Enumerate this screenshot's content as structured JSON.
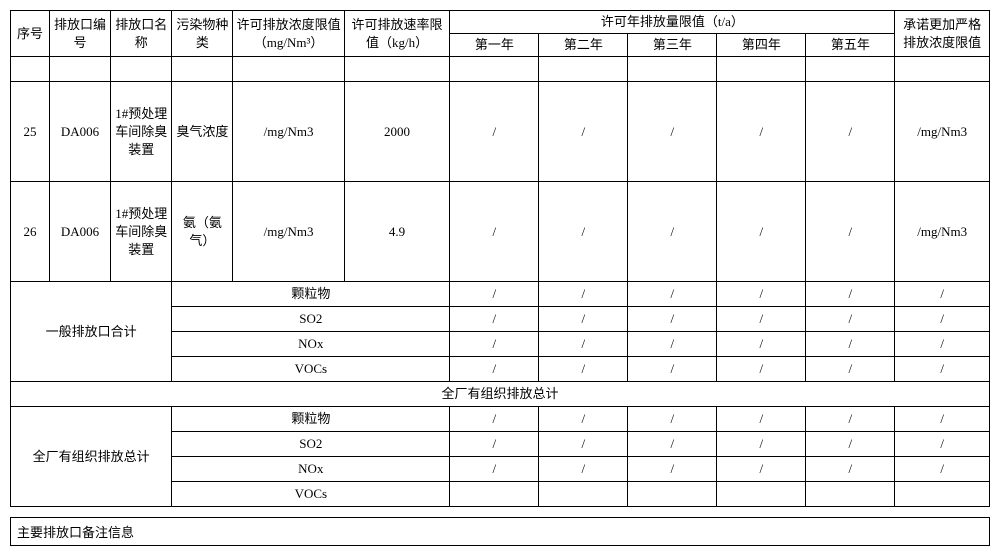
{
  "headers": {
    "seq": "序号",
    "code": "排放口编号",
    "name": "排放口名称",
    "pollutant": "污染物种类",
    "conc": "许可排放浓度限值（mg/Nm³）",
    "rate": "许可排放速率限值（kg/h）",
    "annual": "许可年排放量限值（t/a）",
    "y1": "第一年",
    "y2": "第二年",
    "y3": "第三年",
    "y4": "第四年",
    "y5": "第五年",
    "commit": "承诺更加严格排放浓度限值"
  },
  "rows": [
    {
      "seq": "25",
      "code": "DA006",
      "name": "1#预处理车间除臭装置",
      "pollutant": "臭气浓度",
      "conc": "/mg/Nm3",
      "rate": "2000",
      "y1": "/",
      "y2": "/",
      "y3": "/",
      "y4": "/",
      "y5": "/",
      "commit": "/mg/Nm3"
    },
    {
      "seq": "26",
      "code": "DA006",
      "name": "1#预处理车间除臭装置",
      "pollutant": "氨（氨气）",
      "conc": "/mg/Nm3",
      "rate": "4.9",
      "y1": "/",
      "y2": "/",
      "y3": "/",
      "y4": "/",
      "y5": "/",
      "commit": "/mg/Nm3"
    }
  ],
  "subtotal_general": {
    "label": "一般排放口合计",
    "lines": [
      {
        "p": "颗粒物",
        "y1": "/",
        "y2": "/",
        "y3": "/",
        "y4": "/",
        "y5": "/",
        "commit": "/"
      },
      {
        "p": "SO2",
        "y1": "/",
        "y2": "/",
        "y3": "/",
        "y4": "/",
        "y5": "/",
        "commit": "/"
      },
      {
        "p": "NOx",
        "y1": "/",
        "y2": "/",
        "y3": "/",
        "y4": "/",
        "y5": "/",
        "commit": "/"
      },
      {
        "p": "VOCs",
        "y1": "/",
        "y2": "/",
        "y3": "/",
        "y4": "/",
        "y5": "/",
        "commit": "/"
      }
    ]
  },
  "section_total_header": "全厂有组织排放总计",
  "subtotal_total": {
    "label": "全厂有组织排放总计",
    "lines": [
      {
        "p": "颗粒物",
        "y1": "/",
        "y2": "/",
        "y3": "/",
        "y4": "/",
        "y5": "/",
        "commit": "/"
      },
      {
        "p": "SO2",
        "y1": "/",
        "y2": "/",
        "y3": "/",
        "y4": "/",
        "y5": "/",
        "commit": "/"
      },
      {
        "p": "NOx",
        "y1": "/",
        "y2": "/",
        "y3": "/",
        "y4": "/",
        "y5": "/",
        "commit": "/"
      },
      {
        "p": "VOCs",
        "y1": "",
        "y2": "",
        "y3": "",
        "y4": "",
        "y5": "",
        "commit": ""
      }
    ]
  },
  "footer": "主要排放口备注信息"
}
